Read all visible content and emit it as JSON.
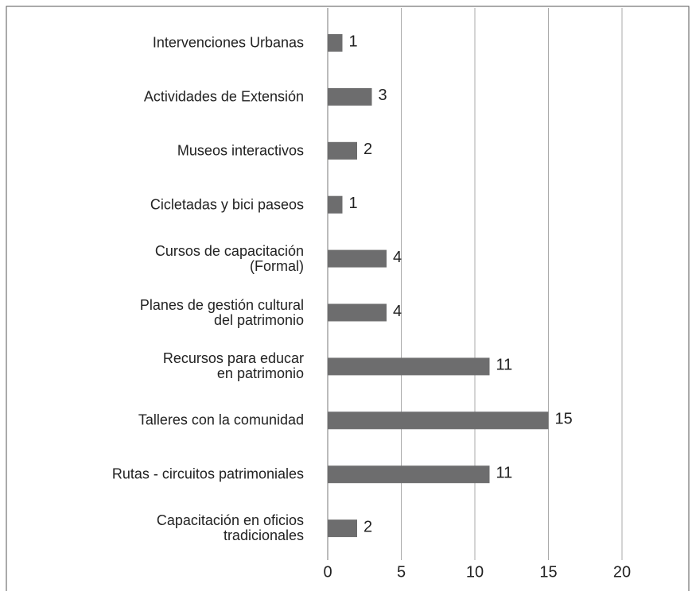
{
  "chart_data": {
    "type": "bar",
    "orientation": "horizontal",
    "categories": [
      "Intervenciones Urbanas",
      "Actividades de Extensión",
      "Museos interactivos",
      "Cicletadas y bici paseos",
      "Cursos de capacitación\n(Formal)",
      "Planes de gestión cultural\ndel patrimonio",
      "Recursos para educar\nen patrimonio",
      "Talleres con la comunidad",
      "Rutas - circuitos patrimoniales",
      "Capacitación en oficios\ntradicionales"
    ],
    "values": [
      1,
      3,
      2,
      1,
      4,
      4,
      11,
      15,
      11,
      2
    ],
    "color": "#6d6d6e",
    "xlim": [
      0,
      20
    ],
    "xticks": [
      0,
      5,
      10,
      15,
      20
    ],
    "grid": true
  }
}
